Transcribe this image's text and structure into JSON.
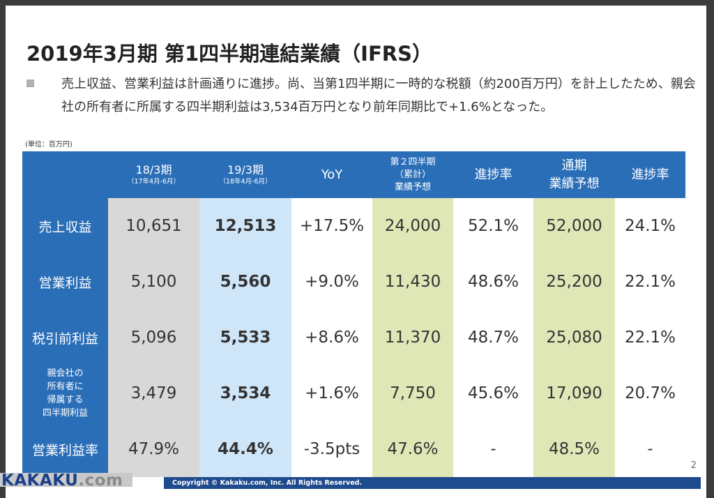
{
  "title": "2019年3月期 第1四半期連結業績（IFRS）",
  "bullet": "売上収益、営業利益は計画通りに進捗。尚、当第1四半期に一時的な税額（約200百万円）を計上したため、親会社の所有者に所属する四半期利益は3,534百万円となり前年同期比で+1.6%となった。",
  "unit": "(単位：百万円)",
  "columns": {
    "prev": {
      "main": "18/3期",
      "sub": "（17年4月-6月）"
    },
    "curr": {
      "main": "19/3期",
      "sub": "（18年4月-6月）"
    },
    "yoy": "YoY",
    "q2": {
      "l1": "第２四半期",
      "l2": "（累計）",
      "l3": "業績予想"
    },
    "prog1": "進捗率",
    "full": {
      "l1": "通期",
      "l2": "業績予想"
    },
    "prog2": "進捗率"
  },
  "rows": [
    {
      "label": "売上収益",
      "prev": "10,651",
      "curr": "12,513",
      "yoy": "+17.5%",
      "q2": "24,000",
      "prog1": "52.1%",
      "full": "52,000",
      "prog2": "24.1%"
    },
    {
      "label": "営業利益",
      "prev": "5,100",
      "curr": "5,560",
      "yoy": "+9.0%",
      "q2": "11,430",
      "prog1": "48.6%",
      "full": "25,200",
      "prog2": "22.1%"
    },
    {
      "label": "税引前利益",
      "prev": "5,096",
      "curr": "5,533",
      "yoy": "+8.6%",
      "q2": "11,370",
      "prog1": "48.7%",
      "full": "25,080",
      "prog2": "22.1%"
    },
    {
      "label_lines": [
        "親会社の",
        "所有者に",
        "帰属する",
        "四半期利益"
      ],
      "prev": "3,479",
      "curr": "3,534",
      "yoy": "+1.6%",
      "q2": "7,750",
      "prog1": "45.6%",
      "full": "17,090",
      "prog2": "20.7%"
    },
    {
      "label": "営業利益率",
      "prev": "47.9%",
      "curr": "44.4%",
      "yoy": "-3.5pts",
      "q2": "47.6%",
      "prog1": "-",
      "full": "48.5%",
      "prog2": "-"
    }
  ],
  "page_number": "2",
  "logo": {
    "main": "kakaku",
    "dotcom": ".com"
  },
  "copyright": "Copyright © Kakaku.com, Inc. All Rights Reserved.",
  "colors": {
    "header_blue": "#2a6eb8",
    "prev_gray": "#d8d8d8",
    "curr_blue": "#cfe6f9",
    "forecast_green": "#dfe7b6"
  }
}
